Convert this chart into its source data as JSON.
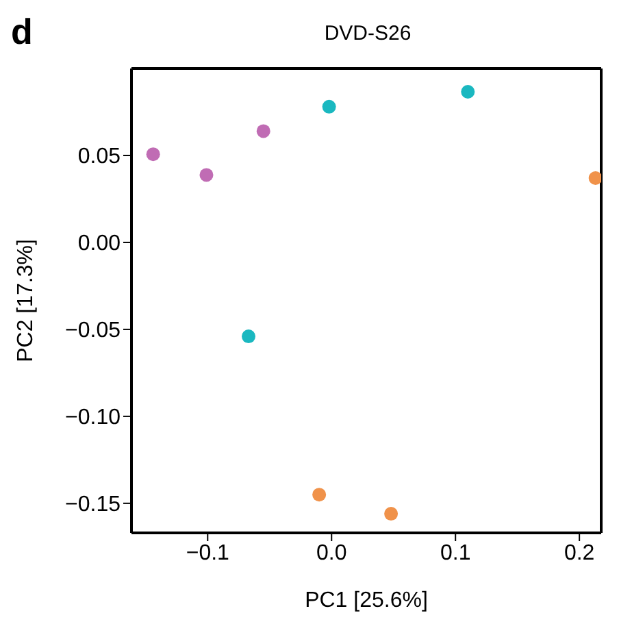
{
  "chart_data": {
    "type": "scatter",
    "title": "DVD-S26",
    "xlabel": "PC1   [25.6%]",
    "ylabel": "PC2   [17.3%]",
    "annotations": [
      "d"
    ],
    "xlim": [
      -0.1615,
      0.2176
    ],
    "ylim": [
      -0.167,
      0.1
    ],
    "xticks": [
      {
        "value": -0.1,
        "label": "−0.1"
      },
      {
        "value": 0,
        "label": "0.0"
      },
      {
        "value": 0.1,
        "label": "0.1"
      },
      {
        "value": 0.2,
        "label": "0.2"
      }
    ],
    "yticks": [
      {
        "value": -0.15,
        "label": "−0.15"
      },
      {
        "value": -0.1,
        "label": "−0.10"
      },
      {
        "value": -0.05,
        "label": "−0.05"
      },
      {
        "value": 0,
        "label": "0.00"
      },
      {
        "value": 0.05,
        "label": "0.05"
      }
    ],
    "grid": false,
    "marker": "circle",
    "series": [
      {
        "color": "#c06cb4",
        "x": [
          -0.144,
          -0.101,
          -0.055
        ],
        "values": [
          0.0507,
          0.0388,
          0.064
        ]
      },
      {
        "color": "#1ab8c0",
        "x": [
          -0.002,
          0.11,
          -0.067
        ],
        "values": [
          0.078,
          0.0866,
          -0.054
        ]
      },
      {
        "color": "#f0924a",
        "x": [
          0.213,
          -0.01,
          0.048
        ],
        "values": [
          0.037,
          -0.145,
          -0.156
        ]
      }
    ]
  }
}
